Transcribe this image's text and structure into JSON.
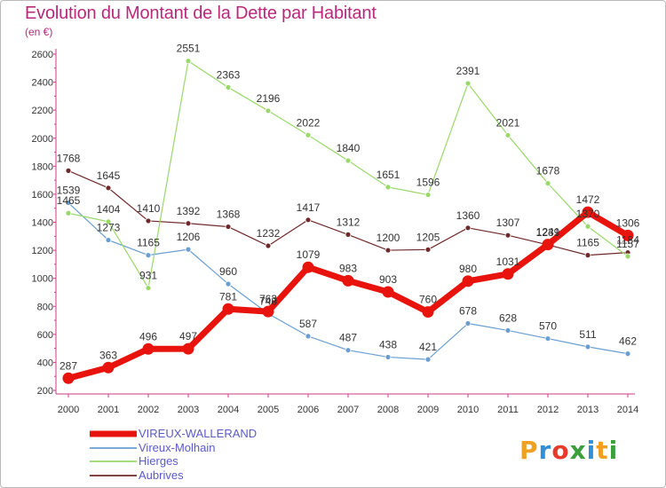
{
  "title": "Evolution du Montant de la Dette par Habitant",
  "subtitle": "(en €)",
  "logo": {
    "letters": [
      {
        "ch": "P",
        "color": "#f0a020"
      },
      {
        "ch": "r",
        "color": "#2f8fd8"
      },
      {
        "ch": "o",
        "color": "#e83a2a"
      },
      {
        "ch": "x",
        "color": "#3aa03a"
      },
      {
        "ch": "i",
        "color": "#2f8fd8"
      },
      {
        "ch": "t",
        "color": "#f0a020"
      },
      {
        "ch": "i",
        "color": "#3aa03a"
      }
    ]
  },
  "chart_data": {
    "type": "line",
    "title": "Evolution du Montant de la Dette par Habitant",
    "subtitle": "(en €)",
    "x": [
      "2000",
      "2001",
      "2002",
      "2003",
      "2004",
      "2005",
      "2006",
      "2007",
      "2008",
      "2009",
      "2010",
      "2011",
      "2012",
      "2013",
      "2014"
    ],
    "ylim": [
      200,
      2600
    ],
    "yticks": [
      200,
      400,
      600,
      800,
      1000,
      1200,
      1400,
      1600,
      1800,
      2000,
      2200,
      2400,
      2600
    ],
    "grid": false,
    "legend_position": "bottom-left",
    "series": [
      {
        "name": "VIREUX-WALLERAND",
        "color": "#e8130d",
        "width": 7,
        "values": [
          287,
          363,
          496,
          497,
          781,
          763,
          1079,
          983,
          903,
          760,
          980,
          1031,
          1241,
          1472,
          1306
        ]
      },
      {
        "name": "Vireux-Molhain",
        "color": "#6a9ed0",
        "width": 1.2,
        "values": [
          1539,
          1273,
          1165,
          1206,
          960,
          748,
          587,
          487,
          438,
          421,
          678,
          628,
          570,
          511,
          462
        ]
      },
      {
        "name": "Hierges",
        "color": "#9ad86a",
        "width": 1.2,
        "values": [
          1465,
          1404,
          931,
          2551,
          2363,
          2196,
          2022,
          1840,
          1651,
          1596,
          2391,
          2021,
          1678,
          1370,
          1157
        ]
      },
      {
        "name": "Aubrives",
        "color": "#6e2a2a",
        "width": 1.2,
        "values": [
          1768,
          1645,
          1410,
          1392,
          1368,
          1232,
          1417,
          1312,
          1200,
          1205,
          1360,
          1307,
          1239,
          1165,
          1184
        ]
      }
    ],
    "data_labels": [
      {
        "x": "2000",
        "text": "287"
      },
      {
        "x": "2001",
        "text": "363"
      },
      {
        "x": "2002",
        "text": "496"
      },
      {
        "x": "2003",
        "text": "497"
      },
      {
        "x": "2004",
        "text": "781"
      },
      {
        "x": "2005",
        "text": "763"
      },
      {
        "x": "2006",
        "text": "1079"
      },
      {
        "x": "2007",
        "text": "983"
      },
      {
        "x": "2008",
        "text": "903"
      },
      {
        "x": "2009",
        "text": "760"
      },
      {
        "x": "2010",
        "text": "980"
      },
      {
        "x": "2011",
        "text": "1031"
      },
      {
        "x": "2012",
        "text": "1241"
      },
      {
        "x": "2013",
        "text": "1472"
      },
      {
        "x": "2014",
        "text": "1306"
      },
      {
        "x": "2000",
        "text": "1539"
      },
      {
        "x": "2001",
        "text": "1273"
      },
      {
        "x": "2002",
        "text": "1165"
      },
      {
        "x": "2003",
        "text": "1206"
      },
      {
        "x": "2004",
        "text": "960"
      },
      {
        "x": "2005",
        "text": "748"
      },
      {
        "x": "2006",
        "text": "587"
      },
      {
        "x": "2007",
        "text": "487"
      },
      {
        "x": "2008",
        "text": "438"
      },
      {
        "x": "2009",
        "text": "421"
      },
      {
        "x": "2010",
        "text": "678"
      },
      {
        "x": "2011",
        "text": "628"
      },
      {
        "x": "2012",
        "text": "570"
      },
      {
        "x": "2013",
        "text": "511"
      },
      {
        "x": "2014",
        "text": "462"
      },
      {
        "x": "2000",
        "text": "1465"
      },
      {
        "x": "2001",
        "text": "1404"
      },
      {
        "x": "2002",
        "text": "931"
      },
      {
        "x": "2003",
        "text": "2551"
      },
      {
        "x": "2004",
        "text": "2363"
      },
      {
        "x": "2005",
        "text": "2196"
      },
      {
        "x": "2006",
        "text": "2022"
      },
      {
        "x": "2007",
        "text": "1840"
      },
      {
        "x": "2008",
        "text": "1651"
      },
      {
        "x": "2009",
        "text": "1596"
      },
      {
        "x": "2010",
        "text": "2391"
      },
      {
        "x": "2011",
        "text": "2021"
      },
      {
        "x": "2012",
        "text": "1678"
      },
      {
        "x": "2013",
        "text": "1370"
      },
      {
        "x": "2014",
        "text": "1157"
      },
      {
        "x": "2000",
        "text": "1768"
      },
      {
        "x": "2001",
        "text": "1645"
      },
      {
        "x": "2002",
        "text": "1410"
      },
      {
        "x": "2003",
        "text": "1392"
      },
      {
        "x": "2004",
        "text": "1368"
      },
      {
        "x": "2005",
        "text": "1232"
      },
      {
        "x": "2006",
        "text": "1417"
      },
      {
        "x": "2007",
        "text": "1312"
      },
      {
        "x": "2008",
        "text": "1200"
      },
      {
        "x": "2009",
        "text": "1205"
      },
      {
        "x": "2010",
        "text": "1360"
      },
      {
        "x": "2011",
        "text": "1307"
      },
      {
        "x": "2012",
        "text": "1239"
      },
      {
        "x": "2013",
        "text": "1165"
      },
      {
        "x": "2014",
        "text": "1184"
      }
    ]
  }
}
